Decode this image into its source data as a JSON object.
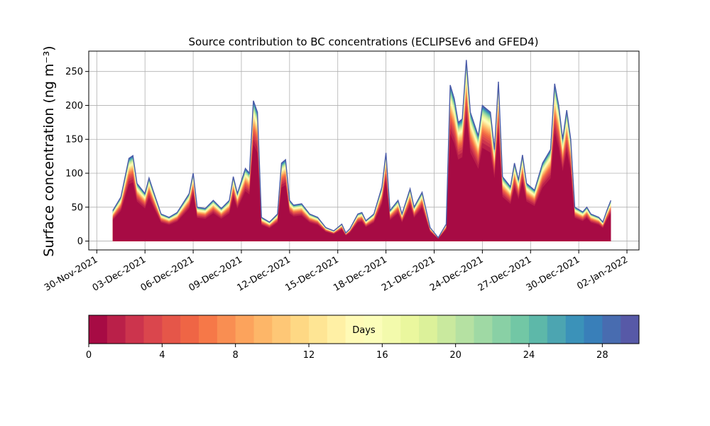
{
  "chart_data": {
    "type": "area",
    "title": "Source contribution to BC concentrations (ECLIPSEv6 and GFED4)",
    "ylabel": "Surface concentration (ng m⁻³)",
    "xlabel": "",
    "x_ticks": [
      "30-Nov-2021",
      "03-Dec-2021",
      "06-Dec-2021",
      "09-Dec-2021",
      "12-Dec-2021",
      "15-Dec-2021",
      "18-Dec-2021",
      "21-Dec-2021",
      "24-Dec-2021",
      "27-Dec-2021",
      "30-Dec-2021",
      "02-Jan-2022"
    ],
    "x_range": [
      "2021-11-29T12:00",
      "2022-01-02T18:00"
    ],
    "y_ticks": [
      0,
      50,
      100,
      150,
      200,
      250
    ],
    "ylim": [
      -13,
      280
    ],
    "grid": true,
    "colorbar": {
      "label": "Days",
      "ticks": [
        0,
        4,
        8,
        12,
        16,
        20,
        24,
        28
      ],
      "range": [
        0,
        30
      ],
      "colormap": "Spectral"
    },
    "series_total": {
      "start": "2021-12-01T00:00",
      "end": "2022-01-01T00:00",
      "points": [
        [
          "2021-12-01T00:00",
          45
        ],
        [
          "2021-12-01T12:00",
          65
        ],
        [
          "2021-12-02T00:00",
          122
        ],
        [
          "2021-12-02T06:00",
          126
        ],
        [
          "2021-12-02T12:00",
          85
        ],
        [
          "2021-12-03T00:00",
          70
        ],
        [
          "2021-12-03T06:00",
          93
        ],
        [
          "2021-12-03T12:00",
          75
        ],
        [
          "2021-12-04T00:00",
          40
        ],
        [
          "2021-12-04T12:00",
          35
        ],
        [
          "2021-12-05T00:00",
          42
        ],
        [
          "2021-12-05T18:00",
          70
        ],
        [
          "2021-12-06T00:00",
          100
        ],
        [
          "2021-12-06T06:00",
          50
        ],
        [
          "2021-12-06T18:00",
          48
        ],
        [
          "2021-12-07T06:00",
          60
        ],
        [
          "2021-12-07T18:00",
          48
        ],
        [
          "2021-12-08T06:00",
          60
        ],
        [
          "2021-12-08T12:00",
          95
        ],
        [
          "2021-12-08T18:00",
          70
        ],
        [
          "2021-12-09T06:00",
          107
        ],
        [
          "2021-12-09T12:00",
          100
        ],
        [
          "2021-12-09T18:00",
          207
        ],
        [
          "2021-12-10T00:00",
          190
        ],
        [
          "2021-12-10T06:00",
          35
        ],
        [
          "2021-12-10T18:00",
          28
        ],
        [
          "2021-12-11T06:00",
          40
        ],
        [
          "2021-12-11T12:00",
          115
        ],
        [
          "2021-12-11T18:00",
          120
        ],
        [
          "2021-12-12T00:00",
          60
        ],
        [
          "2021-12-12T06:00",
          53
        ],
        [
          "2021-12-12T18:00",
          55
        ],
        [
          "2021-12-13T06:00",
          40
        ],
        [
          "2021-12-13T18:00",
          35
        ],
        [
          "2021-12-14T06:00",
          20
        ],
        [
          "2021-12-14T18:00",
          15
        ],
        [
          "2021-12-15T06:00",
          25
        ],
        [
          "2021-12-15T12:00",
          12
        ],
        [
          "2021-12-15T18:00",
          18
        ],
        [
          "2021-12-16T06:00",
          40
        ],
        [
          "2021-12-16T12:00",
          42
        ],
        [
          "2021-12-16T18:00",
          30
        ],
        [
          "2021-12-17T06:00",
          40
        ],
        [
          "2021-12-17T18:00",
          80
        ],
        [
          "2021-12-18T00:00",
          130
        ],
        [
          "2021-12-18T06:00",
          45
        ],
        [
          "2021-12-18T18:00",
          60
        ],
        [
          "2021-12-19T00:00",
          40
        ],
        [
          "2021-12-19T12:00",
          77
        ],
        [
          "2021-12-19T18:00",
          50
        ],
        [
          "2021-12-20T06:00",
          72
        ],
        [
          "2021-12-20T18:00",
          20
        ],
        [
          "2021-12-21T06:00",
          5
        ],
        [
          "2021-12-21T18:00",
          25
        ],
        [
          "2021-12-22T00:00",
          230
        ],
        [
          "2021-12-22T06:00",
          210
        ],
        [
          "2021-12-22T12:00",
          175
        ],
        [
          "2021-12-22T18:00",
          180
        ],
        [
          "2021-12-23T00:00",
          267
        ],
        [
          "2021-12-23T06:00",
          190
        ],
        [
          "2021-12-23T18:00",
          155
        ],
        [
          "2021-12-24T00:00",
          200
        ],
        [
          "2021-12-24T12:00",
          190
        ],
        [
          "2021-12-24T18:00",
          135
        ],
        [
          "2021-12-25T00:00",
          235
        ],
        [
          "2021-12-25T06:00",
          95
        ],
        [
          "2021-12-25T18:00",
          80
        ],
        [
          "2021-12-26T00:00",
          115
        ],
        [
          "2021-12-26T06:00",
          90
        ],
        [
          "2021-12-26T12:00",
          127
        ],
        [
          "2021-12-26T18:00",
          85
        ],
        [
          "2021-12-27T06:00",
          75
        ],
        [
          "2021-12-27T18:00",
          115
        ],
        [
          "2021-12-28T06:00",
          135
        ],
        [
          "2021-12-28T12:00",
          232
        ],
        [
          "2021-12-28T18:00",
          200
        ],
        [
          "2021-12-29T00:00",
          150
        ],
        [
          "2021-12-29T06:00",
          193
        ],
        [
          "2021-12-29T12:00",
          150
        ],
        [
          "2021-12-29T18:00",
          50
        ],
        [
          "2021-12-30T06:00",
          43
        ],
        [
          "2021-12-30T12:00",
          50
        ],
        [
          "2021-12-30T18:00",
          40
        ],
        [
          "2021-12-31T06:00",
          35
        ],
        [
          "2021-12-31T12:00",
          28
        ],
        [
          "2021-12-31T18:00",
          45
        ],
        [
          "2022-01-01T00:00",
          60
        ]
      ]
    },
    "colors": [
      "#9e0142",
      "#d53e4f",
      "#f46d43",
      "#fdae61",
      "#fee08b",
      "#ffffbf",
      "#e6f598",
      "#abdda4",
      "#66c2a5",
      "#3288bd",
      "#5e4fa2"
    ]
  }
}
